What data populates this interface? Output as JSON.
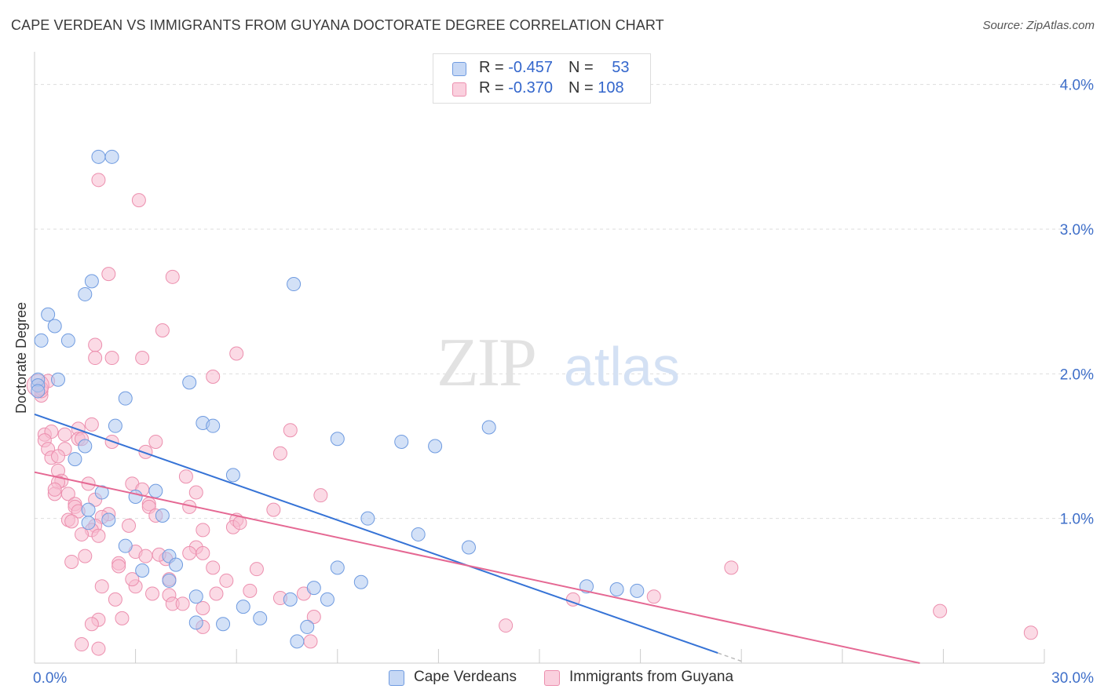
{
  "header": {
    "title": "CAPE VERDEAN VS IMMIGRANTS FROM GUYANA DOCTORATE DEGREE CORRELATION CHART",
    "source": "Source: ZipAtlas.com"
  },
  "legend": {
    "rows": [
      {
        "r_label": "R = ",
        "r_value": "-0.457",
        "n_label": "N = ",
        "n_value": "53"
      },
      {
        "r_label": "R = ",
        "r_value": "-0.370",
        "n_label": "N = ",
        "n_value": "108"
      }
    ]
  },
  "watermark": {
    "zip": "ZIP",
    "atlas": "atlas"
  },
  "colors": {
    "blue_fill": "#aec8f0",
    "blue_stroke": "#6f9be0",
    "blue_line": "#3673d6",
    "pink_fill": "#f8bcd0",
    "pink_stroke": "#ec8fae",
    "pink_line": "#e56893",
    "tick_label": "#3f6fc9",
    "grid": "#dddddd"
  },
  "chart_data": {
    "type": "scatter",
    "title": "CAPE VERDEAN VS IMMIGRANTS FROM GUYANA DOCTORATE DEGREE CORRELATION CHART",
    "xlabel": "",
    "ylabel": "Doctorate Degree",
    "xlim": [
      0,
      30
    ],
    "ylim": [
      0,
      4.15
    ],
    "x_tick_labels": [
      "0.0%",
      "30.0%"
    ],
    "y_ticks": [
      1,
      2,
      3,
      4
    ],
    "y_tick_labels": [
      "1.0%",
      "2.0%",
      "3.0%",
      "4.0%"
    ],
    "grid": true,
    "legend_position": "top-center",
    "series": [
      {
        "name": "Cape Verdeans",
        "R": -0.457,
        "N": 53,
        "trend": {
          "x0": 0,
          "y0": 1.72,
          "x1": 20.3,
          "y1": 0.07,
          "dash_to_x": 21.0
        },
        "points": [
          [
            1.9,
            3.5
          ],
          [
            2.3,
            3.5
          ],
          [
            1.7,
            2.64
          ],
          [
            7.7,
            2.62
          ],
          [
            1.5,
            2.55
          ],
          [
            0.4,
            2.41
          ],
          [
            0.6,
            2.33
          ],
          [
            0.2,
            2.23
          ],
          [
            1.0,
            2.23
          ],
          [
            0.1,
            1.96
          ],
          [
            0.7,
            1.96
          ],
          [
            0.1,
            1.92
          ],
          [
            0.1,
            1.88
          ],
          [
            4.6,
            1.94
          ],
          [
            2.7,
            1.83
          ],
          [
            5.0,
            1.66
          ],
          [
            5.3,
            1.64
          ],
          [
            2.4,
            1.64
          ],
          [
            1.5,
            1.5
          ],
          [
            1.2,
            1.41
          ],
          [
            9.0,
            1.55
          ],
          [
            10.9,
            1.53
          ],
          [
            11.9,
            1.5
          ],
          [
            13.5,
            1.63
          ],
          [
            5.9,
            1.3
          ],
          [
            3.6,
            1.19
          ],
          [
            2.0,
            1.18
          ],
          [
            3.0,
            1.15
          ],
          [
            3.8,
            1.02
          ],
          [
            2.2,
            0.99
          ],
          [
            1.6,
            1.06
          ],
          [
            1.6,
            0.97
          ],
          [
            2.7,
            0.81
          ],
          [
            9.9,
            1.0
          ],
          [
            11.4,
            0.89
          ],
          [
            12.9,
            0.8
          ],
          [
            3.2,
            0.64
          ],
          [
            4.0,
            0.74
          ],
          [
            4.2,
            0.68
          ],
          [
            4.0,
            0.57
          ],
          [
            9.0,
            0.66
          ],
          [
            9.7,
            0.56
          ],
          [
            4.8,
            0.46
          ],
          [
            8.3,
            0.52
          ],
          [
            8.7,
            0.44
          ],
          [
            16.4,
            0.53
          ],
          [
            17.3,
            0.51
          ],
          [
            17.9,
            0.5
          ],
          [
            7.6,
            0.44
          ],
          [
            6.2,
            0.39
          ],
          [
            6.7,
            0.31
          ],
          [
            4.8,
            0.28
          ],
          [
            5.6,
            0.27
          ],
          [
            8.1,
            0.25
          ],
          [
            7.8,
            0.15
          ]
        ]
      },
      {
        "name": "Immigrants from Guyana",
        "R": -0.37,
        "N": 108,
        "trend": {
          "x0": 0,
          "y0": 1.32,
          "x1": 26.3,
          "y1": 0.0
        },
        "points": [
          [
            1.9,
            3.34
          ],
          [
            3.1,
            3.2
          ],
          [
            2.2,
            2.69
          ],
          [
            4.1,
            2.67
          ],
          [
            3.8,
            2.3
          ],
          [
            1.8,
            2.2
          ],
          [
            1.8,
            2.11
          ],
          [
            2.3,
            2.11
          ],
          [
            3.2,
            2.11
          ],
          [
            6.0,
            2.14
          ],
          [
            5.3,
            1.98
          ],
          [
            0.2,
            1.85
          ],
          [
            0.2,
            1.88
          ],
          [
            0.4,
            1.95
          ],
          [
            0.3,
            1.58
          ],
          [
            0.5,
            1.6
          ],
          [
            1.7,
            1.65
          ],
          [
            1.3,
            1.62
          ],
          [
            3.6,
            1.53
          ],
          [
            2.3,
            1.53
          ],
          [
            1.3,
            1.55
          ],
          [
            1.4,
            1.55
          ],
          [
            0.3,
            1.54
          ],
          [
            7.6,
            1.61
          ],
          [
            7.3,
            1.45
          ],
          [
            0.4,
            1.48
          ],
          [
            0.9,
            1.48
          ],
          [
            0.5,
            1.42
          ],
          [
            0.7,
            1.43
          ],
          [
            3.3,
            1.46
          ],
          [
            4.5,
            1.29
          ],
          [
            0.7,
            1.33
          ],
          [
            0.8,
            1.26
          ],
          [
            0.7,
            1.25
          ],
          [
            1.6,
            1.24
          ],
          [
            2.9,
            1.24
          ],
          [
            3.2,
            1.2
          ],
          [
            1.0,
            1.17
          ],
          [
            0.6,
            1.17
          ],
          [
            0.6,
            1.2
          ],
          [
            8.5,
            1.16
          ],
          [
            1.8,
            1.13
          ],
          [
            1.2,
            1.1
          ],
          [
            1.2,
            1.08
          ],
          [
            3.4,
            1.1
          ],
          [
            3.4,
            1.08
          ],
          [
            4.6,
            1.08
          ],
          [
            7.1,
            1.06
          ],
          [
            2.2,
            1.03
          ],
          [
            1.3,
            1.05
          ],
          [
            3.6,
            1.02
          ],
          [
            1.0,
            0.99
          ],
          [
            1.1,
            0.98
          ],
          [
            2.0,
            1.01
          ],
          [
            6.0,
            0.99
          ],
          [
            5.9,
            0.94
          ],
          [
            1.8,
            0.95
          ],
          [
            1.7,
            0.92
          ],
          [
            2.8,
            0.95
          ],
          [
            5.0,
            0.92
          ],
          [
            1.4,
            0.89
          ],
          [
            1.9,
            0.88
          ],
          [
            4.8,
            0.8
          ],
          [
            3.0,
            0.77
          ],
          [
            4.6,
            0.76
          ],
          [
            5.0,
            0.76
          ],
          [
            3.3,
            0.74
          ],
          [
            3.9,
            0.72
          ],
          [
            3.7,
            0.75
          ],
          [
            1.5,
            0.74
          ],
          [
            1.1,
            0.7
          ],
          [
            2.5,
            0.69
          ],
          [
            2.5,
            0.67
          ],
          [
            5.3,
            0.66
          ],
          [
            6.6,
            0.65
          ],
          [
            20.7,
            0.66
          ],
          [
            5.7,
            0.57
          ],
          [
            4.0,
            0.58
          ],
          [
            3.0,
            0.53
          ],
          [
            2.0,
            0.53
          ],
          [
            6.4,
            0.5
          ],
          [
            2.4,
            0.44
          ],
          [
            3.5,
            0.48
          ],
          [
            4.0,
            0.47
          ],
          [
            5.4,
            0.48
          ],
          [
            8.0,
            0.48
          ],
          [
            16.0,
            0.44
          ],
          [
            18.4,
            0.46
          ],
          [
            4.1,
            0.41
          ],
          [
            4.4,
            0.41
          ],
          [
            7.3,
            0.45
          ],
          [
            5.0,
            0.38
          ],
          [
            8.3,
            0.32
          ],
          [
            1.9,
            0.3
          ],
          [
            2.6,
            0.31
          ],
          [
            1.7,
            0.27
          ],
          [
            5.0,
            0.25
          ],
          [
            14.0,
            0.26
          ],
          [
            26.9,
            0.36
          ],
          [
            29.6,
            0.21
          ],
          [
            1.4,
            0.13
          ],
          [
            1.9,
            0.1
          ],
          [
            8.2,
            0.15
          ],
          [
            0.2,
            1.9
          ],
          [
            0.9,
            1.58
          ],
          [
            4.8,
            1.18
          ],
          [
            6.1,
            0.97
          ],
          [
            2.9,
            0.58
          ]
        ]
      }
    ]
  }
}
